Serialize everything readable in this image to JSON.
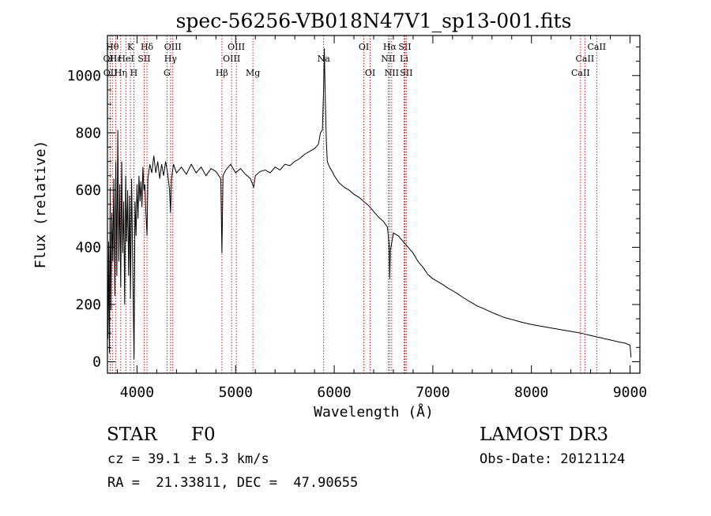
{
  "chart_data": {
    "type": "line",
    "title": "spec-56256-VB018N47V1_sp13-001.fits",
    "xlabel": "Wavelength (Å)",
    "ylabel": "Flux (relative)",
    "xlim": [
      3700,
      9100
    ],
    "ylim": [
      -40,
      1140
    ],
    "x_ticks": [
      4000,
      5000,
      6000,
      7000,
      8000,
      9000
    ],
    "y_ticks": [
      0,
      200,
      400,
      600,
      800,
      1000
    ],
    "grid": false,
    "series": [
      {
        "name": "flux",
        "points": [
          [
            3700,
            280
          ],
          [
            3705,
            80
          ],
          [
            3712,
            420
          ],
          [
            3720,
            30
          ],
          [
            3728,
            610
          ],
          [
            3735,
            180
          ],
          [
            3745,
            520
          ],
          [
            3755,
            350
          ],
          [
            3765,
            640
          ],
          [
            3775,
            230
          ],
          [
            3785,
            700
          ],
          [
            3795,
            300
          ],
          [
            3805,
            810
          ],
          [
            3815,
            350
          ],
          [
            3825,
            620
          ],
          [
            3835,
            260
          ],
          [
            3845,
            700
          ],
          [
            3855,
            380
          ],
          [
            3865,
            560
          ],
          [
            3875,
            200
          ],
          [
            3885,
            650
          ],
          [
            3895,
            420
          ],
          [
            3905,
            600
          ],
          [
            3915,
            300
          ],
          [
            3925,
            580
          ],
          [
            3933,
            220
          ],
          [
            3945,
            640
          ],
          [
            3955,
            380
          ],
          [
            3965,
            120
          ],
          [
            3970,
            10
          ],
          [
            3980,
            560
          ],
          [
            3990,
            440
          ],
          [
            4000,
            620
          ],
          [
            4010,
            500
          ],
          [
            4020,
            650
          ],
          [
            4030,
            560
          ],
          [
            4040,
            630
          ],
          [
            4050,
            540
          ],
          [
            4060,
            680
          ],
          [
            4070,
            600
          ],
          [
            4080,
            620
          ],
          [
            4090,
            520
          ],
          [
            4101,
            440
          ],
          [
            4110,
            640
          ],
          [
            4130,
            690
          ],
          [
            4150,
            660
          ],
          [
            4170,
            720
          ],
          [
            4190,
            660
          ],
          [
            4210,
            700
          ],
          [
            4230,
            640
          ],
          [
            4250,
            690
          ],
          [
            4270,
            650
          ],
          [
            4290,
            700
          ],
          [
            4310,
            660
          ],
          [
            4330,
            600
          ],
          [
            4340,
            520
          ],
          [
            4350,
            640
          ],
          [
            4370,
            690
          ],
          [
            4400,
            660
          ],
          [
            4450,
            680
          ],
          [
            4500,
            655
          ],
          [
            4550,
            690
          ],
          [
            4600,
            660
          ],
          [
            4650,
            680
          ],
          [
            4700,
            650
          ],
          [
            4750,
            675
          ],
          [
            4800,
            665
          ],
          [
            4850,
            640
          ],
          [
            4861,
            380
          ],
          [
            4872,
            650
          ],
          [
            4900,
            670
          ],
          [
            4950,
            690
          ],
          [
            5000,
            660
          ],
          [
            5050,
            675
          ],
          [
            5100,
            655
          ],
          [
            5150,
            640
          ],
          [
            5183,
            610
          ],
          [
            5200,
            650
          ],
          [
            5250,
            665
          ],
          [
            5300,
            670
          ],
          [
            5350,
            660
          ],
          [
            5400,
            680
          ],
          [
            5450,
            670
          ],
          [
            5500,
            690
          ],
          [
            5550,
            685
          ],
          [
            5600,
            700
          ],
          [
            5650,
            710
          ],
          [
            5700,
            725
          ],
          [
            5750,
            735
          ],
          [
            5800,
            745
          ],
          [
            5840,
            760
          ],
          [
            5860,
            800
          ],
          [
            5880,
            810
          ],
          [
            5893,
            960
          ],
          [
            5900,
            1095
          ],
          [
            5906,
            980
          ],
          [
            5912,
            880
          ],
          [
            5920,
            770
          ],
          [
            5930,
            700
          ],
          [
            5940,
            690
          ],
          [
            5960,
            675
          ],
          [
            5980,
            665
          ],
          [
            6000,
            650
          ],
          [
            6050,
            625
          ],
          [
            6100,
            610
          ],
          [
            6150,
            600
          ],
          [
            6200,
            585
          ],
          [
            6250,
            575
          ],
          [
            6300,
            560
          ],
          [
            6350,
            545
          ],
          [
            6400,
            525
          ],
          [
            6450,
            505
          ],
          [
            6500,
            490
          ],
          [
            6540,
            470
          ],
          [
            6556,
            410
          ],
          [
            6563,
            290
          ],
          [
            6570,
            390
          ],
          [
            6600,
            450
          ],
          [
            6650,
            440
          ],
          [
            6700,
            420
          ],
          [
            6750,
            400
          ],
          [
            6800,
            380
          ],
          [
            6850,
            350
          ],
          [
            6900,
            330
          ],
          [
            6950,
            305
          ],
          [
            7000,
            290
          ],
          [
            7050,
            280
          ],
          [
            7100,
            270
          ],
          [
            7150,
            258
          ],
          [
            7200,
            248
          ],
          [
            7250,
            238
          ],
          [
            7300,
            226
          ],
          [
            7350,
            215
          ],
          [
            7400,
            205
          ],
          [
            7450,
            195
          ],
          [
            7500,
            188
          ],
          [
            7550,
            180
          ],
          [
            7600,
            172
          ],
          [
            7650,
            165
          ],
          [
            7700,
            158
          ],
          [
            7750,
            152
          ],
          [
            7800,
            148
          ],
          [
            7850,
            143
          ],
          [
            7900,
            138
          ],
          [
            7950,
            134
          ],
          [
            8000,
            130
          ],
          [
            8050,
            127
          ],
          [
            8100,
            124
          ],
          [
            8150,
            121
          ],
          [
            8200,
            118
          ],
          [
            8250,
            115
          ],
          [
            8300,
            112
          ],
          [
            8350,
            109
          ],
          [
            8400,
            106
          ],
          [
            8450,
            103
          ],
          [
            8500,
            100
          ],
          [
            8550,
            96
          ],
          [
            8600,
            92
          ],
          [
            8650,
            88
          ],
          [
            8700,
            84
          ],
          [
            8750,
            80
          ],
          [
            8800,
            76
          ],
          [
            8850,
            72
          ],
          [
            8900,
            68
          ],
          [
            8950,
            65
          ],
          [
            9000,
            58
          ],
          [
            9010,
            15
          ]
        ]
      }
    ],
    "line_markers": [
      {
        "label": "Hθ",
        "x": 3750,
        "row": 1
      },
      {
        "label": "OII",
        "x": 3727,
        "row": 2
      },
      {
        "label": "OII",
        "x": 3729,
        "row": 3
      },
      {
        "label": "Hε",
        "x": 3783,
        "row": 2
      },
      {
        "label": "Hη",
        "x": 3835,
        "row": 3
      },
      {
        "label": "K",
        "x": 3933,
        "row": 1
      },
      {
        "label": "HeI",
        "x": 3889,
        "row": 2
      },
      {
        "label": "H",
        "x": 3968,
        "row": 3
      },
      {
        "label": "SII",
        "x": 4072,
        "row": 2
      },
      {
        "label": "Hδ",
        "x": 4101,
        "row": 1
      },
      {
        "label": "OIII",
        "x": 4363,
        "row": 1
      },
      {
        "label": "Hγ",
        "x": 4340,
        "row": 2
      },
      {
        "label": "G",
        "x": 4304,
        "row": 3
      },
      {
        "label": "Hβ",
        "x": 4861,
        "row": 3
      },
      {
        "label": "OIII",
        "x": 5007,
        "row": 1
      },
      {
        "label": "OIII",
        "x": 4959,
        "row": 2
      },
      {
        "label": "Mg",
        "x": 5175,
        "row": 3
      },
      {
        "label": "Na",
        "x": 5893,
        "row": 2
      },
      {
        "label": "OI",
        "x": 6300,
        "row": 1
      },
      {
        "label": "OI",
        "x": 6364,
        "row": 3
      },
      {
        "label": "Hα",
        "x": 6563,
        "row": 1
      },
      {
        "label": "SII",
        "x": 6716,
        "row": 1
      },
      {
        "label": "NII",
        "x": 6548,
        "row": 2
      },
      {
        "label": "Li",
        "x": 6708,
        "row": 2
      },
      {
        "label": "NII",
        "x": 6583,
        "row": 3
      },
      {
        "label": "SII",
        "x": 6731,
        "row": 3
      },
      {
        "label": "CaII",
        "x": 8662,
        "row": 1
      },
      {
        "label": "CaII",
        "x": 8542,
        "row": 2
      },
      {
        "label": "CaII",
        "x": 8498,
        "row": 3
      }
    ],
    "line_marker_style": "dotted red vertical lines"
  },
  "info": {
    "object_class": "STAR",
    "subclass": "F0",
    "survey": "LAMOST DR3",
    "cz": "cz = 39.1 ± 5.3 km/s",
    "obs_date": "Obs-Date: 20121124",
    "coords": "RA =  21.33811, DEC =  47.90655"
  },
  "colors": {
    "spectrum": "#000000",
    "line_markers": "#cc0000",
    "axes": "#000000",
    "background": "#ffffff"
  }
}
